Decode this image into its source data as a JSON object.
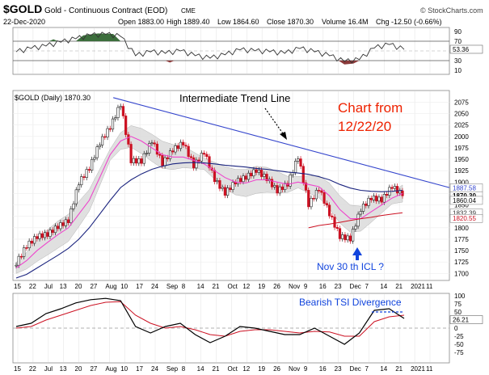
{
  "header": {
    "symbol": "$GOLD",
    "name": "Gold - Continuous Contract (EOD)",
    "exchange": "CME",
    "date": "22-Dec-2020",
    "ohlc": [
      "Open 1883.00",
      "High 1889.40",
      "Low 1864.60",
      "Close 1870.30",
      "Volume 16.4M",
      "Chg -12.50 (-0.66%)"
    ],
    "source": "© StockCharts.com",
    "price_legend": "$GOLD (Daily) 1870.30"
  },
  "annotations": {
    "trend_line": "Intermediate Trend Line",
    "chart_from_1": "Chart from",
    "chart_from_2": "12/22/20",
    "icl": "Nov 30 th ICL ?",
    "tsi": "Bearish TSI Divergence"
  },
  "colors": {
    "price_up": "#222222",
    "price_down": "#cc1122",
    "sma_fast": "#ee44cc",
    "sma_mid": "#1a237e",
    "sma_slow": "#cc1122",
    "trendline": "#3344cc",
    "band_fill": "#dddddd",
    "annotation_red": "#ee2200",
    "annotation_blue": "#1144dd",
    "rsi_overbought": "#3c6e3c",
    "rsi_oversold": "#8b3a3a"
  },
  "chart_data": [
    {
      "type": "line",
      "panel": "rsi",
      "ylim": [
        5,
        95
      ],
      "y_ticks": [
        "90",
        "70",
        "50",
        "30",
        "10"
      ],
      "levels": [
        30,
        70
      ],
      "last_value_label": "53.36",
      "x": [
        "Jun 15",
        "Jun 22",
        "Jul 1",
        "Jul 13",
        "Jul 20",
        "Jul 27",
        "Aug 3",
        "Aug 10",
        "Aug 17",
        "Aug 24",
        "Aug 31",
        "Sep 8",
        "Sep 14",
        "Sep 21",
        "Sep 28",
        "Oct 5",
        "Oct 12",
        "Oct 19",
        "Oct 26",
        "Nov 2",
        "Nov 9",
        "Nov 16",
        "Nov 23",
        "Nov 30",
        "Dec 7",
        "Dec 14",
        "Dec 21"
      ],
      "values": [
        48,
        55,
        60,
        68,
        75,
        82,
        84,
        80,
        40,
        48,
        45,
        50,
        40,
        35,
        42,
        52,
        50,
        48,
        45,
        55,
        48,
        40,
        28,
        32,
        56,
        63,
        53
      ]
    },
    {
      "type": "candlestick",
      "panel": "price",
      "ylim": [
        1690,
        2090
      ],
      "y_ticks": [
        "2075",
        "2050",
        "2025",
        "2000",
        "1975",
        "1950",
        "1925",
        "1900",
        "1875",
        "1850",
        "1825",
        "1800",
        "1775",
        "1750",
        "1725",
        "1700"
      ],
      "x_labels": [
        "15",
        "22",
        "Jul",
        "13",
        "20",
        "27",
        "Aug",
        "10",
        "17",
        "24",
        "Sep",
        "8",
        "14",
        "21",
        "Oct",
        "12",
        "19",
        "26",
        "Nov",
        "9",
        "16",
        "23",
        "Dec",
        "7",
        "14",
        "21",
        "2021",
        "11"
      ],
      "series": [
        {
          "name": "Close",
          "x": [
            "Jun 15",
            "Jun 22",
            "Jul 1",
            "Jul 6",
            "Jul 13",
            "Jul 20",
            "Jul 24",
            "Jul 27",
            "Jul 31",
            "Aug 3",
            "Aug 6",
            "Aug 11",
            "Aug 14",
            "Aug 18",
            "Aug 24",
            "Aug 28",
            "Sep 1",
            "Sep 8",
            "Sep 14",
            "Sep 21",
            "Sep 24",
            "Sep 28",
            "Oct 5",
            "Oct 12",
            "Oct 19",
            "Oct 26",
            "Nov 2",
            "Nov 6",
            "Nov 9",
            "Nov 16",
            "Nov 23",
            "Nov 27",
            "Nov 30",
            "Dec 3",
            "Dec 7",
            "Dec 14",
            "Dec 18",
            "Dec 22"
          ],
          "values": [
            1722,
            1760,
            1780,
            1785,
            1802,
            1815,
            1898,
            1930,
            1985,
            2020,
            2070,
            1946,
            1945,
            1990,
            1940,
            1970,
            1985,
            1935,
            1965,
            1905,
            1875,
            1900,
            1910,
            1925,
            1907,
            1880,
            1895,
            1955,
            1850,
            1885,
            1830,
            1780,
            1775,
            1840,
            1865,
            1860,
            1890,
            1870
          ]
        }
      ],
      "overlays": [
        {
          "name": "SMA fast",
          "values": [
            1712,
            1728,
            1750,
            1768,
            1785,
            1800,
            1830,
            1860,
            1910,
            1960,
            1990,
            2000,
            1990,
            1975,
            1960,
            1955,
            1955,
            1948,
            1940,
            1925,
            1910,
            1900,
            1898,
            1905,
            1905,
            1900,
            1895,
            1900,
            1895,
            1890,
            1870,
            1840,
            1820,
            1820,
            1835,
            1850,
            1865,
            1875
          ]
        },
        {
          "name": "SMA mid",
          "values": [
            1690,
            1698,
            1712,
            1726,
            1740,
            1755,
            1775,
            1800,
            1830,
            1860,
            1888,
            1905,
            1918,
            1928,
            1935,
            1940,
            1942,
            1943,
            1942,
            1940,
            1937,
            1935,
            1933,
            1930,
            1928,
            1925,
            1922,
            1920,
            1917,
            1912,
            1905,
            1895,
            1887,
            1882,
            1880,
            1879,
            1880,
            1882
          ]
        },
        {
          "name": "SMA slow",
          "values": [
            1800,
            1805,
            1808,
            1812,
            1816,
            1820,
            1823,
            1827,
            1830,
            1833
          ]
        }
      ],
      "price_labels": [
        "1887.58",
        "1870.30",
        "1860.04",
        "1832.39",
        "1820.55"
      ],
      "trend_line": {
        "from": [
          "Aug 7",
          2085
        ],
        "to": [
          "Dec 31",
          1888
        ]
      }
    },
    {
      "type": "line",
      "panel": "tsi",
      "ylim": [
        -100,
        100
      ],
      "y_ticks": [
        "100",
        "75",
        "50",
        "25",
        "0",
        "-25",
        "-50",
        "-75"
      ],
      "last_value_label": "26.21",
      "series": [
        {
          "name": "TSI",
          "x": [
            "Jun 15",
            "Jun 22",
            "Jul 1",
            "Jul 13",
            "Jul 20",
            "Jul 27",
            "Aug 3",
            "Aug 10",
            "Aug 17",
            "Aug 24",
            "Sep 1",
            "Sep 8",
            "Sep 14",
            "Sep 21",
            "Sep 28",
            "Oct 5",
            "Oct 12",
            "Oct 19",
            "Oct 26",
            "Nov 2",
            "Nov 9",
            "Nov 16",
            "Nov 23",
            "Nov 30",
            "Dec 7",
            "Dec 14",
            "Dec 21"
          ],
          "values": [
            5,
            15,
            45,
            60,
            78,
            88,
            92,
            85,
            5,
            -15,
            5,
            15,
            -20,
            -45,
            -25,
            5,
            0,
            -10,
            -20,
            -20,
            0,
            -25,
            -50,
            -15,
            55,
            60,
            30
          ]
        },
        {
          "name": "Signal",
          "values": [
            0,
            5,
            25,
            40,
            55,
            70,
            80,
            82,
            40,
            15,
            0,
            5,
            -5,
            -20,
            -25,
            -10,
            -5,
            -5,
            -10,
            -15,
            -10,
            -12,
            -25,
            -25,
            20,
            35,
            40
          ]
        }
      ]
    }
  ]
}
